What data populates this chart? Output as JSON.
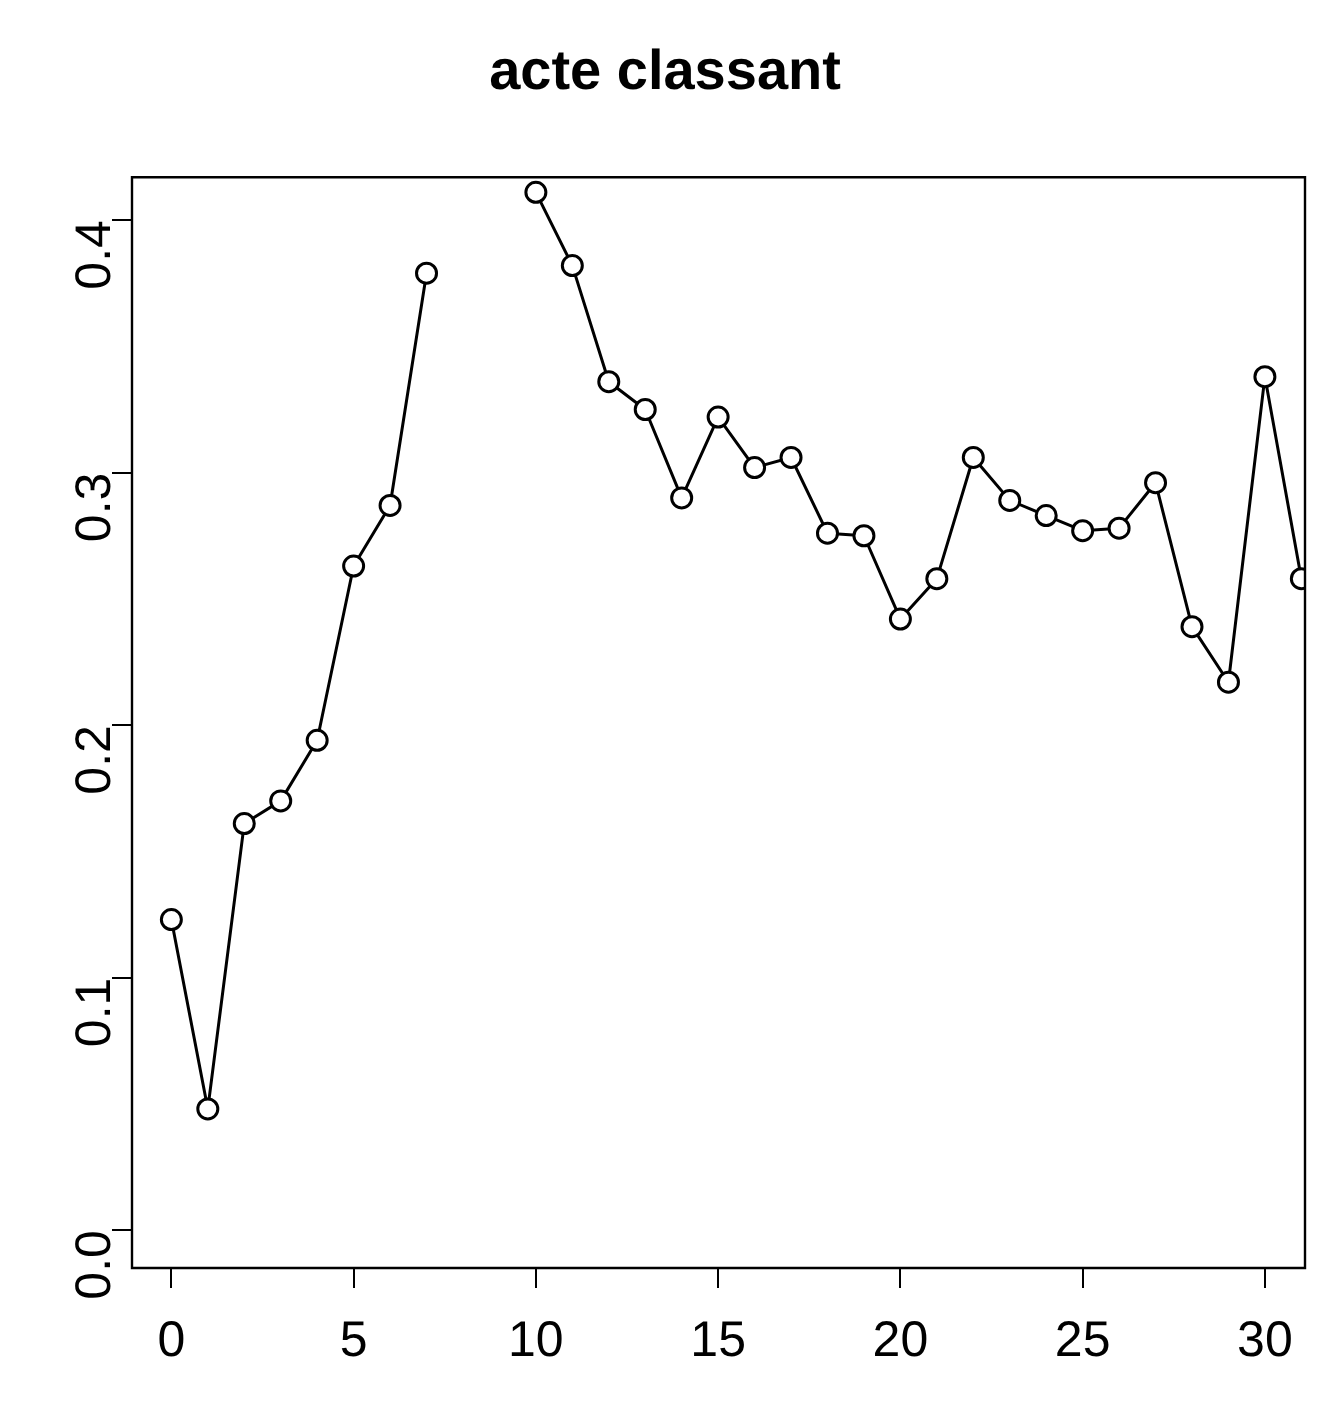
{
  "chart_data": {
    "type": "line",
    "title": "acte classant",
    "x": [
      0,
      1,
      2,
      3,
      4,
      5,
      6,
      7,
      8,
      9,
      10,
      11,
      12,
      13,
      14,
      15,
      16,
      17,
      18,
      19,
      20,
      21,
      22,
      23,
      24,
      25,
      26,
      27,
      28,
      29,
      30,
      31
    ],
    "values": [
      0.123,
      0.048,
      0.161,
      0.17,
      0.194,
      0.263,
      0.287,
      0.379,
      null,
      null,
      0.411,
      0.382,
      0.336,
      0.325,
      0.29,
      0.322,
      0.302,
      0.306,
      0.276,
      0.275,
      0.242,
      0.258,
      0.306,
      0.289,
      0.283,
      0.277,
      0.278,
      0.296,
      0.239,
      0.217,
      0.338,
      0.258
    ],
    "color": "#000000",
    "marker": "circle",
    "line_style": "solid",
    "grid": false,
    "legend": false,
    "xlim": [
      -1.08,
      31.1
    ],
    "xticks": [
      0,
      5,
      10,
      15,
      20,
      25,
      30
    ],
    "ylim": [
      -0.015,
      0.417
    ],
    "yticks": [
      {
        "value": 0,
        "label": "0.0"
      },
      0.1,
      0.2,
      0.3,
      0.4
    ]
  }
}
